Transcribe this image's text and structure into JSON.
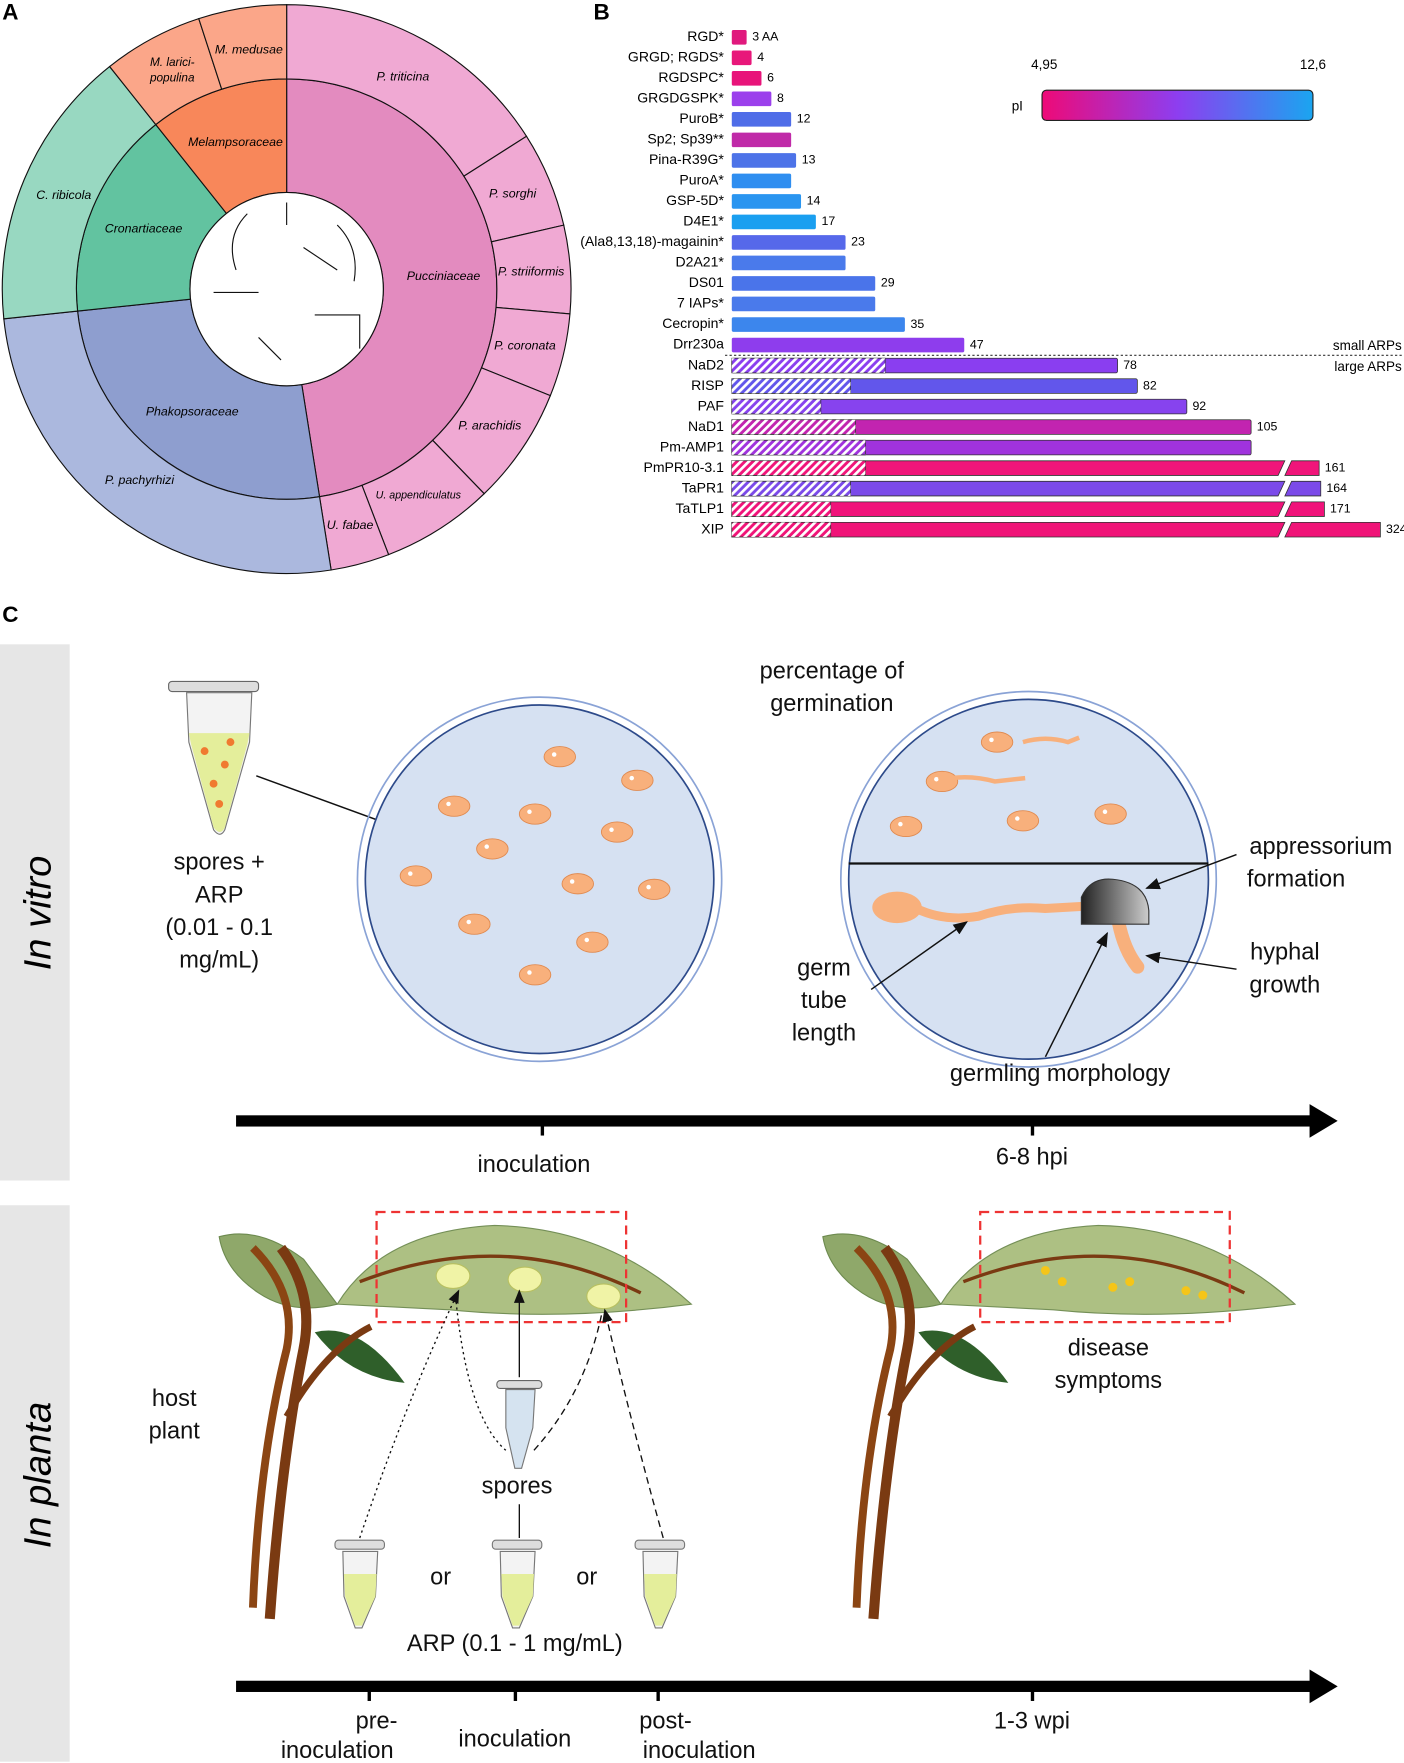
{
  "panels": {
    "a": "A",
    "b": "B",
    "c": "C"
  },
  "sunburst": {
    "families": [
      {
        "name": "Pucciniaceae",
        "species": [
          "P. triticina",
          "P. sorghi",
          "P. striiformis",
          "P. coronata",
          "P. arachidis",
          "U. appendiculatus",
          "U. fabae"
        ]
      },
      {
        "name": "Phakopsoraceae",
        "species": [
          "P. pachyrhizi"
        ]
      },
      {
        "name": "Cronartiaceae",
        "species": [
          "C. ribicola"
        ]
      },
      {
        "name": "Melampsoraceae",
        "species": [
          [
            "M. larici-",
            "populina"
          ],
          "M. medusae"
        ]
      }
    ]
  },
  "chart_data": {
    "type": "bar",
    "orientation": "horizontal",
    "categories": [
      "RGD*",
      "GRGD; RGDS*",
      "RGDSPC*",
      "GRGDGSPK*",
      "PuroB*",
      "Sp2; Sp39**",
      "Pina-R39G*",
      "PuroA*",
      "GSP-5D*",
      "D4E1*",
      "(Ala8,13,18)-magainin*",
      "D2A21*",
      "DS01",
      "7 IAPs*",
      "Cecropin*",
      "Drr230a",
      "NaD2",
      "RISP",
      "PAF",
      "NaD1",
      "Pm-AMP1",
      "PmPR10-3.1",
      "TaPR1",
      "TaTLP1",
      "XIP"
    ],
    "values": [
      3,
      4,
      6,
      8,
      12,
      12,
      13,
      12,
      14,
      17,
      23,
      23,
      29,
      29,
      35,
      47,
      78,
      82,
      92,
      105,
      105,
      161,
      164,
      171,
      324
    ],
    "value_labels": [
      "3 AA",
      "4",
      "6",
      "8",
      "12",
      null,
      "13",
      null,
      "14",
      "17",
      "23",
      null,
      "29",
      null,
      "35",
      "47",
      "78",
      "82",
      "92",
      "105",
      null,
      "161",
      "164",
      "171",
      "324"
    ],
    "signal_peptide": [
      null,
      null,
      null,
      null,
      null,
      null,
      null,
      null,
      null,
      null,
      null,
      null,
      null,
      null,
      null,
      null,
      31,
      24,
      18,
      25,
      27,
      27,
      24,
      20,
      20
    ],
    "colors": [
      "#e0197d",
      "#e8177a",
      "#e8147a",
      "#9b40ec",
      "#4f6de8",
      "#c02aa8",
      "#4d73e8",
      "#2f8ef0",
      "#2a95f0",
      "#1a9ff0",
      "#5668ea",
      "#4a7aeb",
      "#4a74ea",
      "#4a7aeb",
      "#3c86ed",
      "#8e3ded",
      "#8a3ef0",
      "#6256eb",
      "#8743ee",
      "#c224b0",
      "#a033dd",
      "#f0157a",
      "#7b4ae9",
      "#f0137a",
      "#f01478"
    ],
    "groups": [
      "small ARPs",
      "large ARPs"
    ],
    "legend": {
      "title": "pI",
      "min_label": "4,95",
      "max_label": "12,6",
      "min_color": "#ee0a77",
      "mid_color": "#8d3ef0",
      "max_color": "#1aa5f0"
    }
  },
  "in_vitro": {
    "side_label": "In vitro",
    "spores_label": [
      "spores +",
      "ARP",
      "(0.01 - 0.1",
      "mg/mL)"
    ],
    "germination": [
      "percentage of",
      "germination"
    ],
    "appressorium": [
      "appressorium",
      "formation"
    ],
    "hyphal": [
      "hyphal",
      "growth"
    ],
    "germ_tube": [
      "germ",
      "tube",
      "length"
    ],
    "morphology": "germling morphology",
    "timeline": [
      "inoculation",
      "6-8 hpi"
    ]
  },
  "in_planta": {
    "side_label": "In planta",
    "host": [
      "host",
      "plant"
    ],
    "spores": "spores",
    "or": [
      "or",
      "or"
    ],
    "arp": "ARP (0.1 - 1 mg/mL)",
    "disease": [
      "disease",
      "symptoms"
    ],
    "timeline": {
      "pre": [
        "pre-",
        "inoculation"
      ],
      "inoculation": "inoculation",
      "post": [
        "post-",
        "inoculation"
      ],
      "end": "1-3 wpi"
    }
  }
}
